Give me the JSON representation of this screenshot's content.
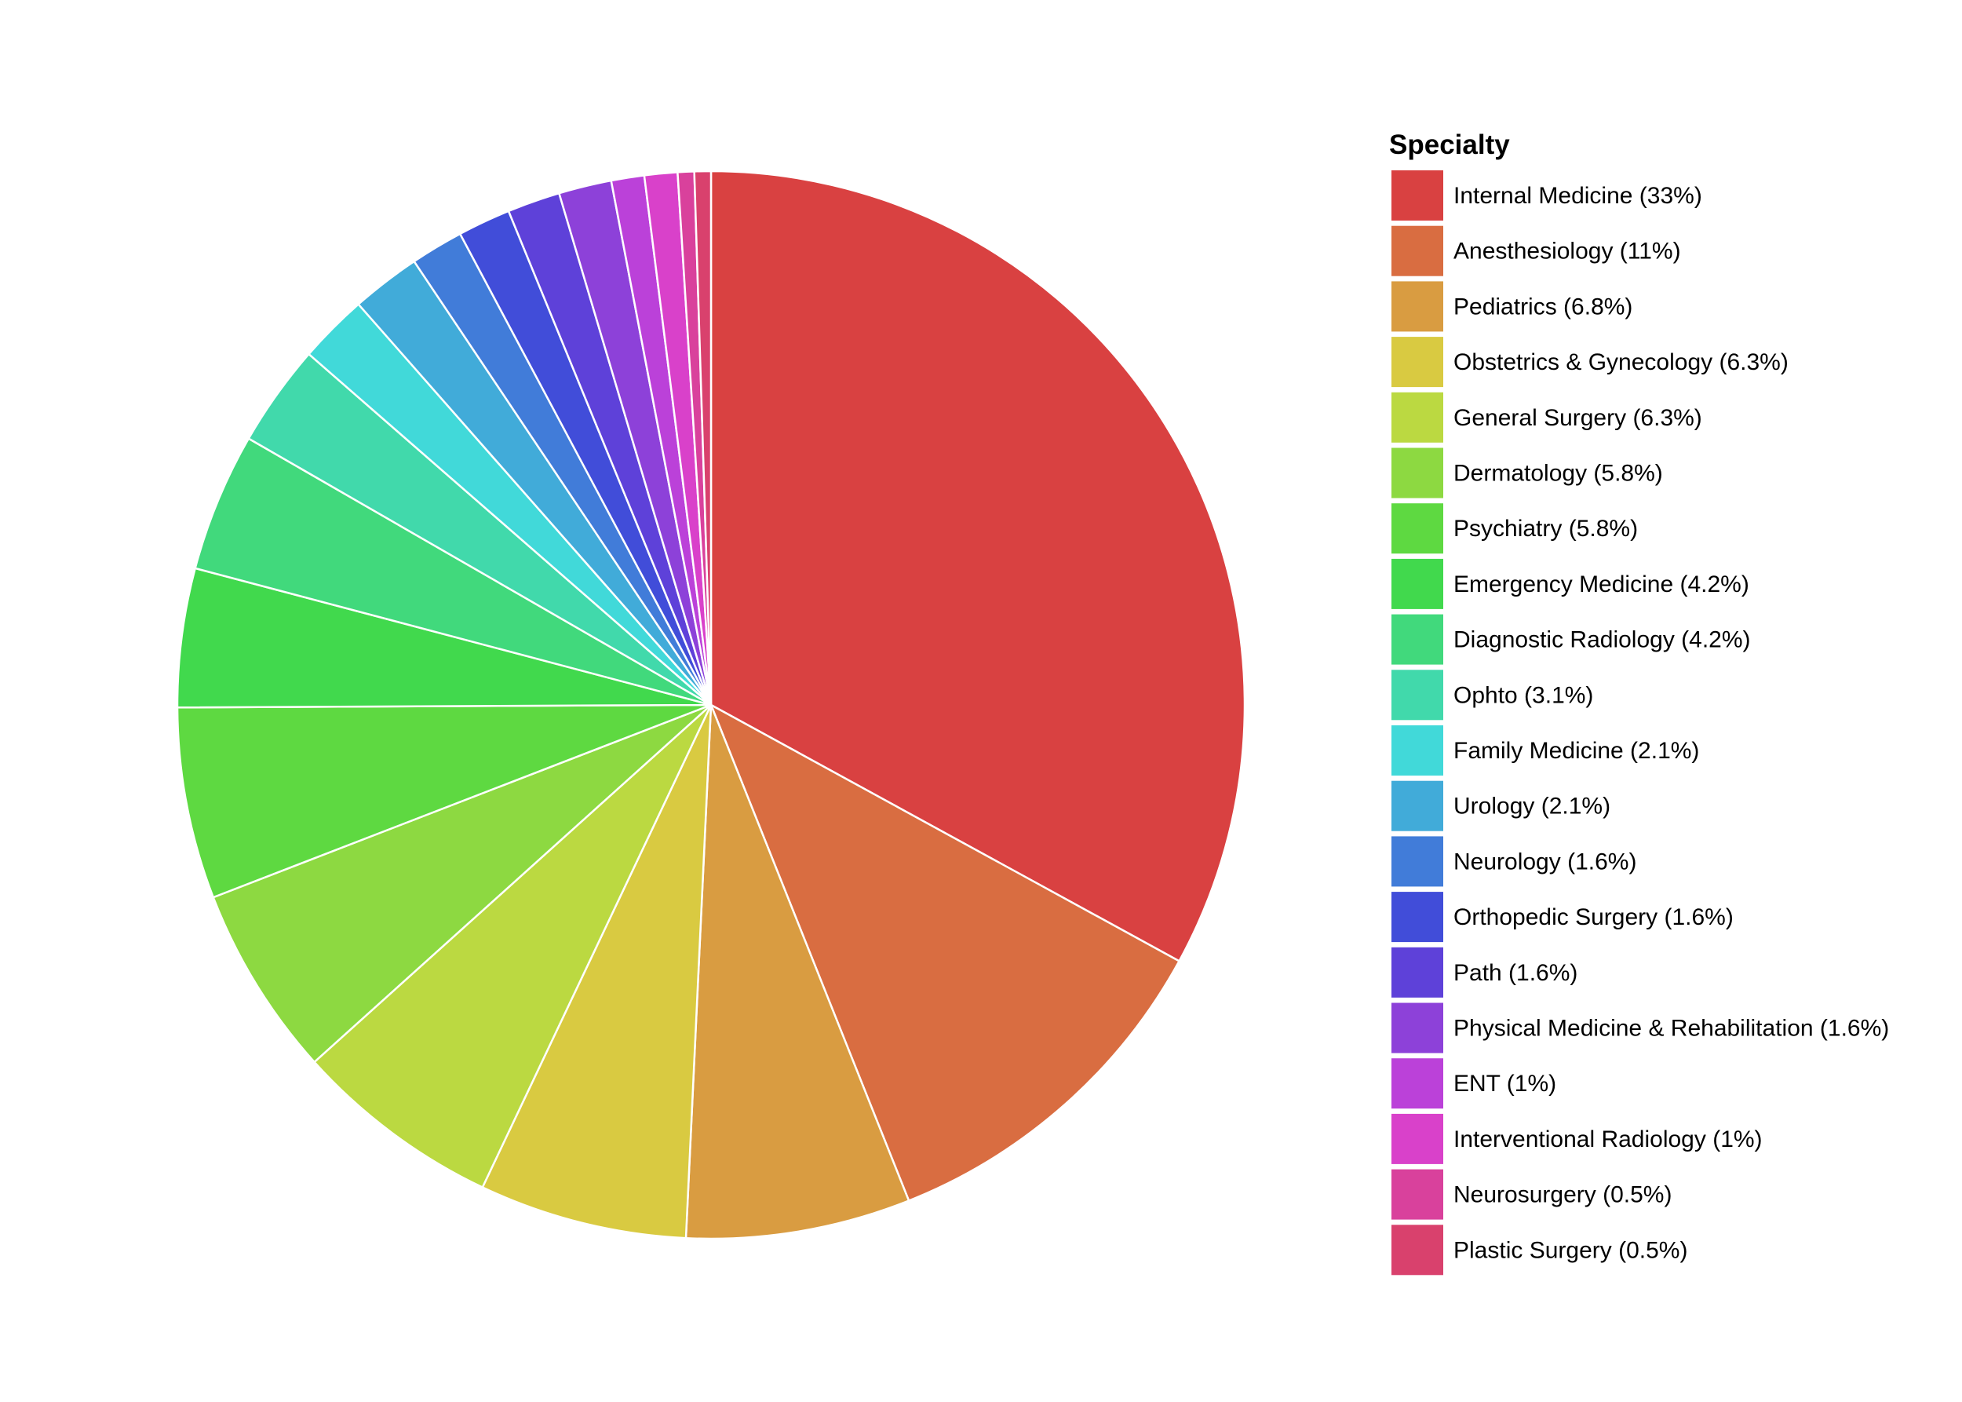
{
  "chart_data": {
    "type": "pie",
    "title": "",
    "legend_title": "Specialty",
    "legend_position": "right",
    "start_angle": "12 o'clock",
    "direction": "clockwise",
    "slice_border_color": "#ffffff",
    "slices": [
      {
        "label": "Internal Medicine (33%)",
        "name": "Internal Medicine",
        "value": 33,
        "color": "#D94141"
      },
      {
        "label": "Anesthesiology (11%)",
        "name": "Anesthesiology",
        "value": 11,
        "color": "#D96D41"
      },
      {
        "label": "Pediatrics (6.8%)",
        "name": "Pediatrics",
        "value": 6.8,
        "color": "#D99C41"
      },
      {
        "label": "Obstetrics & Gynecology (6.3%)",
        "name": "Obstetrics & Gynecology",
        "value": 6.3,
        "color": "#D9CA41"
      },
      {
        "label": "General Surgery (6.3%)",
        "name": "General Surgery",
        "value": 6.3,
        "color": "#BBD941"
      },
      {
        "label": "Dermatology (5.8%)",
        "name": "Dermatology",
        "value": 5.8,
        "color": "#8DD941"
      },
      {
        "label": "Psychiatry (5.8%)",
        "name": "Psychiatry",
        "value": 5.8,
        "color": "#5ED941"
      },
      {
        "label": "Emergency Medicine (4.2%)",
        "name": "Emergency Medicine",
        "value": 4.2,
        "color": "#41D94D"
      },
      {
        "label": "Diagnostic Radiology (4.2%)",
        "name": "Diagnostic Radiology",
        "value": 4.2,
        "color": "#41D97C"
      },
      {
        "label": "Ophto (3.1%)",
        "name": "Ophto",
        "value": 3.1,
        "color": "#41D9AB"
      },
      {
        "label": "Family Medicine (2.1%)",
        "name": "Family Medicine",
        "value": 2.1,
        "color": "#41D9D9"
      },
      {
        "label": "Urology (2.1%)",
        "name": "Urology",
        "value": 2.1,
        "color": "#41ABD9"
      },
      {
        "label": "Neurology (1.6%)",
        "name": "Neurology",
        "value": 1.6,
        "color": "#417CD9"
      },
      {
        "label": "Orthopedic Surgery (1.6%)",
        "name": "Orthopedic Surgery",
        "value": 1.6,
        "color": "#414DD9"
      },
      {
        "label": "Path (1.6%)",
        "name": "Path",
        "value": 1.6,
        "color": "#5E41D9"
      },
      {
        "label": "Physical Medicine & Rehabilitation (1.6%)",
        "name": "Physical Medicine & Rehabilitation",
        "value": 1.6,
        "color": "#8D41D9"
      },
      {
        "label": "ENT (1%)",
        "name": "ENT",
        "value": 1,
        "color": "#BB41D9"
      },
      {
        "label": "Interventional Radiology (1%)",
        "name": "Interventional Radiology",
        "value": 1,
        "color": "#D941CA"
      },
      {
        "label": "Neurosurgery (0.5%)",
        "name": "Neurosurgery",
        "value": 0.5,
        "color": "#D9419C"
      },
      {
        "label": "Plastic Surgery (0.5%)",
        "name": "Plastic Surgery",
        "value": 0.5,
        "color": "#D9416D"
      }
    ]
  }
}
